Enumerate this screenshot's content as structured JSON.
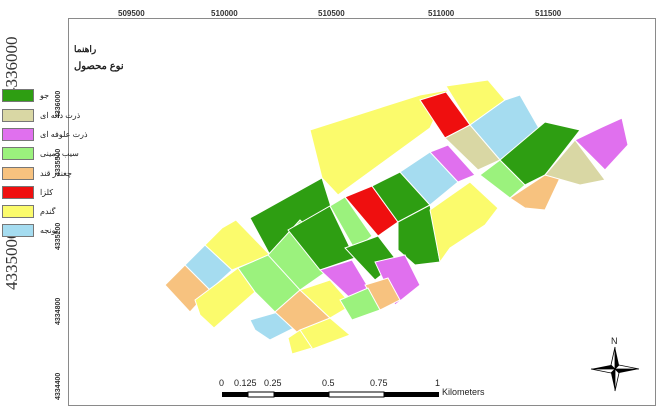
{
  "x_ticks": [
    "509500",
    "510000",
    "510500",
    "511000",
    "511500"
  ],
  "y_ticks": [
    "4336000",
    "4335500",
    "4335200",
    "4334800",
    "4334400"
  ],
  "big_y_ticks": [
    "4336000",
    "4335000"
  ],
  "legend": {
    "title": "راهنما",
    "subtitle": "نوع محصول",
    "items": [
      {
        "label": "جو",
        "color": "#2e9e12"
      },
      {
        "label": "ذرت دانه ای",
        "color": "#d9d7a4"
      },
      {
        "label": "ذرت علوفه ای",
        "color": "#e070ee"
      },
      {
        "label": "سیب زمینی",
        "color": "#9bf27d"
      },
      {
        "label": "چغندر قند",
        "color": "#f7c27f"
      },
      {
        "label": "کلزا",
        "color": "#ef0f0f"
      },
      {
        "label": "گندم",
        "color": "#fbfb6c"
      },
      {
        "label": "یونجه",
        "color": "#a5dcf0"
      }
    ]
  },
  "scale_bar": {
    "labels": [
      "0",
      "0.125",
      "0.25",
      "0.5",
      "0.75",
      "1"
    ],
    "unit": "Kilometers"
  },
  "north_arrow": {
    "label": "N",
    "icon": "north-arrow-icon"
  }
}
